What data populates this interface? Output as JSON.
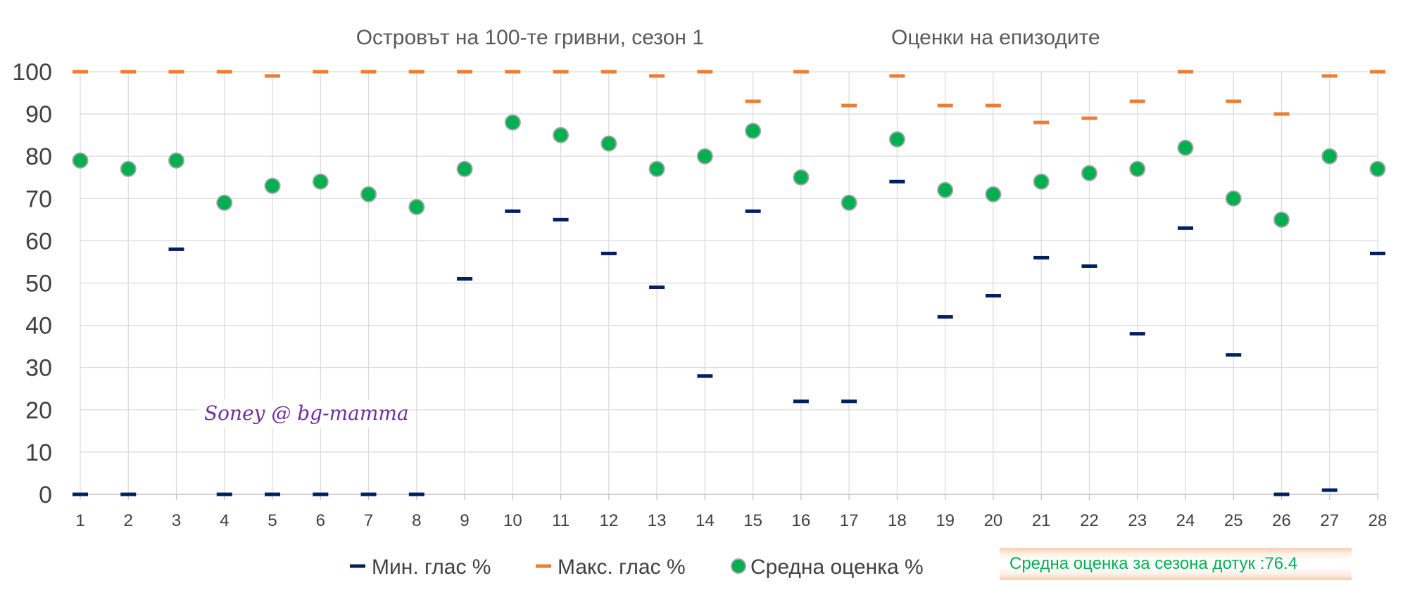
{
  "chart_data": {
    "type": "scatter",
    "title": "Островът на 100-те гривни, сезон 1",
    "subtitle": "Оценки на епизодите",
    "x": [
      1,
      2,
      3,
      4,
      5,
      6,
      7,
      8,
      9,
      10,
      11,
      12,
      13,
      14,
      15,
      16,
      17,
      18,
      19,
      20,
      21,
      22,
      23,
      24,
      25,
      26,
      27,
      28
    ],
    "xlim": [
      1,
      28
    ],
    "ylim": [
      0,
      100
    ],
    "yticks": [
      0,
      10,
      20,
      30,
      40,
      50,
      60,
      70,
      80,
      90,
      100
    ],
    "grid": true,
    "legend_position": "bottom",
    "series": [
      {
        "name": "Мин. глас %",
        "marker": "dash",
        "color": "#002060",
        "values": [
          0,
          0,
          58,
          0,
          0,
          0,
          0,
          0,
          51,
          67,
          65,
          57,
          49,
          28,
          67,
          22,
          22,
          74,
          42,
          47,
          56,
          54,
          38,
          63,
          33,
          0,
          1,
          57
        ]
      },
      {
        "name": "Макс. глас %",
        "marker": "dash",
        "color": "#ed7d31",
        "values": [
          100,
          100,
          100,
          100,
          99,
          100,
          100,
          100,
          100,
          100,
          100,
          100,
          99,
          100,
          93,
          100,
          92,
          99,
          92,
          92,
          88,
          89,
          93,
          100,
          93,
          90,
          99,
          100
        ]
      },
      {
        "name": "Средна оценка %",
        "marker": "circle",
        "color": "#00b050",
        "values": [
          79,
          77,
          79,
          69,
          73,
          74,
          71,
          68,
          77,
          88,
          85,
          83,
          77,
          80,
          86,
          75,
          69,
          84,
          72,
          71,
          74,
          76,
          77,
          82,
          70,
          65,
          80,
          77
        ]
      }
    ]
  },
  "watermark": "Soney @ bg-mamma",
  "season_average": {
    "label": "Средна оценка за сезона дотук :",
    "value": "76.4"
  }
}
